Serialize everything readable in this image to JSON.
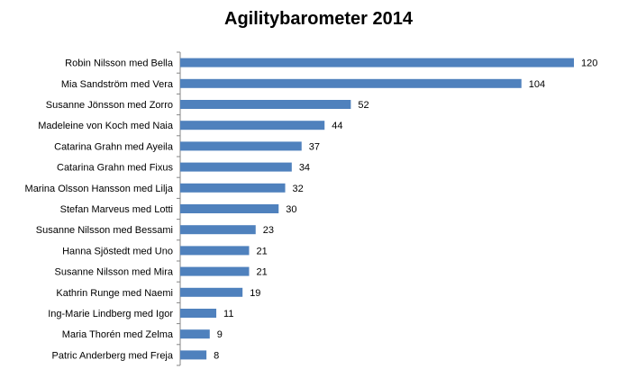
{
  "chart_data": {
    "type": "bar",
    "orientation": "horizontal",
    "title": "Agilitybarometer 2014",
    "xlabel": "",
    "ylabel": "",
    "xlim": [
      0,
      120
    ],
    "grid": false,
    "legend": "none",
    "bar_color": "#4F81BD",
    "axis_color": "#868686",
    "data_labels": true,
    "categories": [
      "Robin Nilsson med Bella",
      "Mia Sandström med Vera",
      "Susanne Jönsson med Zorro",
      "Madeleine von Koch med Naia",
      "Catarina Grahn med Ayeila",
      "Catarina Grahn med Fixus",
      "Marina Olsson Hansson med Lilja",
      "Stefan Marveus med Lotti",
      "Susanne Nilsson med Bessami",
      "Hanna Sjöstedt med Uno",
      "Susanne Nilsson med Mira",
      "Kathrin Runge med Naemi",
      "Ing-Marie Lindberg med Igor",
      "Maria Thorén med Zelma",
      "Patric Anderberg med Freja"
    ],
    "values": [
      120,
      104,
      52,
      44,
      37,
      34,
      32,
      30,
      23,
      21,
      21,
      19,
      11,
      9,
      8
    ]
  }
}
